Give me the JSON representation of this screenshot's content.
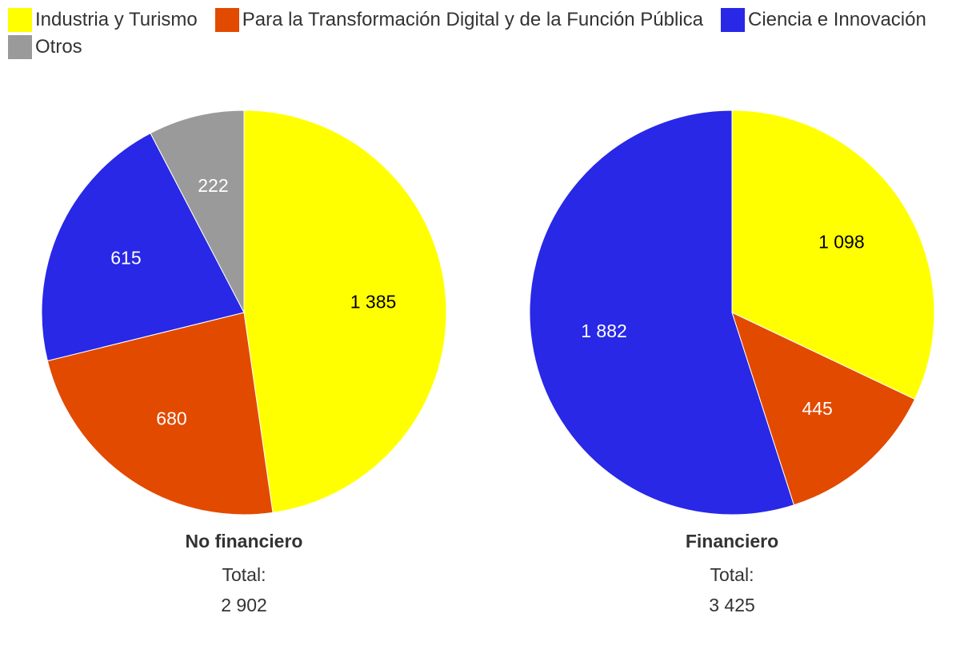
{
  "chart_data": {
    "type": "pie",
    "legend": [
      {
        "label": "Industria y Turismo",
        "color": "#ffff00"
      },
      {
        "label": "Para la Transformación Digital y de la Función Pública",
        "color": "#e24a00"
      },
      {
        "label": "Ciencia e Innovación",
        "color": "#2828e6"
      },
      {
        "label": "Otros",
        "color": "#9a9a9a"
      }
    ],
    "charts": [
      {
        "title": "No financiero",
        "total_label": "Total:",
        "total_value": "2 902",
        "slices": [
          {
            "category": "Industria y Turismo",
            "value": 1385,
            "label": "1 385",
            "color": "#ffff00",
            "label_color": "#000000"
          },
          {
            "category": "Para la Transformación Digital y de la Función Pública",
            "value": 680,
            "label": "680",
            "color": "#e24a00",
            "label_color": "#ffffff"
          },
          {
            "category": "Ciencia e Innovación",
            "value": 615,
            "label": "615",
            "color": "#2828e6",
            "label_color": "#ffffff"
          },
          {
            "category": "Otros",
            "value": 222,
            "label": "222",
            "color": "#9a9a9a",
            "label_color": "#ffffff"
          }
        ]
      },
      {
        "title": "Financiero",
        "total_label": "Total:",
        "total_value": "3 425",
        "slices": [
          {
            "category": "Industria y Turismo",
            "value": 1098,
            "label": "1 098",
            "color": "#ffff00",
            "label_color": "#000000"
          },
          {
            "category": "Para la Transformación Digital y de la Función Pública",
            "value": 445,
            "label": "445",
            "color": "#e24a00",
            "label_color": "#ffffff"
          },
          {
            "category": "Ciencia e Innovación",
            "value": 1882,
            "label": "1 882",
            "color": "#2828e6",
            "label_color": "#ffffff"
          }
        ]
      }
    ]
  }
}
